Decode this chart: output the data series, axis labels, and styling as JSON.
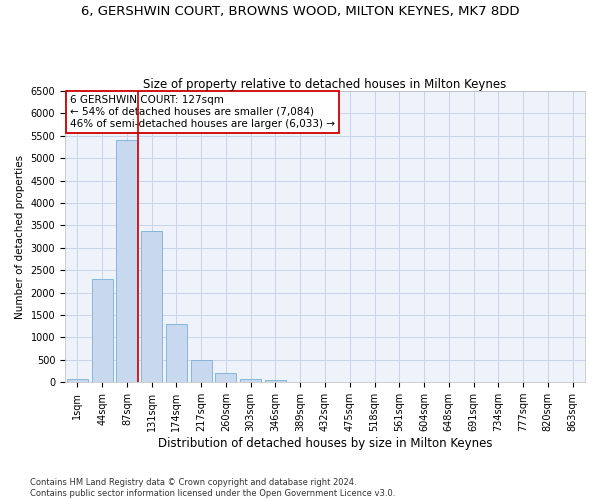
{
  "title": "6, GERSHWIN COURT, BROWNS WOOD, MILTON KEYNES, MK7 8DD",
  "subtitle": "Size of property relative to detached houses in Milton Keynes",
  "xlabel": "Distribution of detached houses by size in Milton Keynes",
  "ylabel": "Number of detached properties",
  "categories": [
    "1sqm",
    "44sqm",
    "87sqm",
    "131sqm",
    "174sqm",
    "217sqm",
    "260sqm",
    "303sqm",
    "346sqm",
    "389sqm",
    "432sqm",
    "475sqm",
    "518sqm",
    "561sqm",
    "604sqm",
    "648sqm",
    "691sqm",
    "734sqm",
    "777sqm",
    "820sqm",
    "863sqm"
  ],
  "values": [
    70,
    2300,
    5400,
    3380,
    1310,
    490,
    195,
    80,
    50,
    0,
    0,
    0,
    0,
    0,
    0,
    0,
    0,
    0,
    0,
    0,
    0
  ],
  "bar_color": "#c8d8ef",
  "bar_edge_color": "#7aafd4",
  "vline_color": "#cc0000",
  "annotation_text": "6 GERSHWIN COURT: 127sqm\n← 54% of detached houses are smaller (7,084)\n46% of semi-detached houses are larger (6,033) →",
  "annotation_box_color": "#ffffff",
  "annotation_box_edge": "#cc0000",
  "ylim": [
    0,
    6500
  ],
  "yticks": [
    0,
    500,
    1000,
    1500,
    2000,
    2500,
    3000,
    3500,
    4000,
    4500,
    5000,
    5500,
    6000,
    6500
  ],
  "grid_color": "#c8d4e8",
  "footer": "Contains HM Land Registry data © Crown copyright and database right 2024.\nContains public sector information licensed under the Open Government Licence v3.0.",
  "title_fontsize": 9.5,
  "subtitle_fontsize": 8.5,
  "xlabel_fontsize": 8.5,
  "ylabel_fontsize": 7.5,
  "tick_fontsize": 7,
  "annotation_fontsize": 7.5,
  "footer_fontsize": 6,
  "bg_color": "#eef2fb"
}
